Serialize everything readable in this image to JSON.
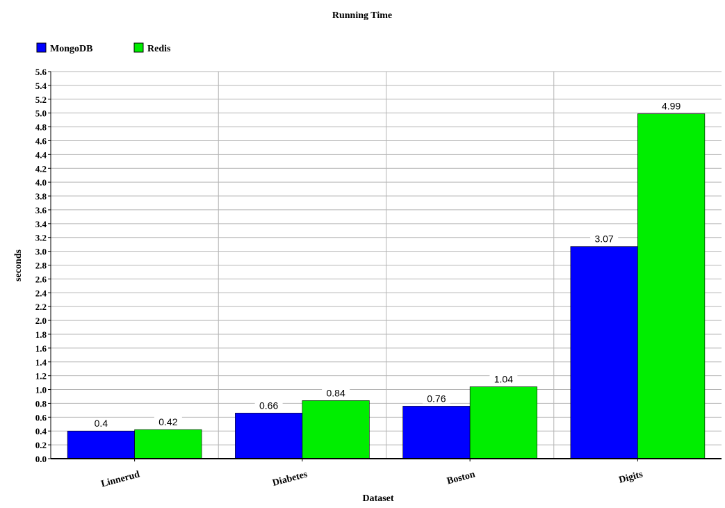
{
  "chart_data": {
    "type": "bar",
    "title": "Running Time",
    "xlabel": "Dataset",
    "ylabel": "seconds",
    "categories": [
      "Linnerud",
      "Diabetes",
      "Boston",
      "Digits"
    ],
    "series": [
      {
        "name": "MongoDB",
        "color": "#0000ff",
        "values": [
          0.4,
          0.66,
          0.76,
          3.07
        ],
        "labels": [
          "0.4",
          "0.66",
          "0.76",
          "3.07"
        ]
      },
      {
        "name": "Redis",
        "color": "#00ee00",
        "values": [
          0.42,
          0.84,
          1.04,
          4.99
        ],
        "labels": [
          "0.42",
          "0.84",
          "1.04",
          "4.99"
        ]
      }
    ],
    "ylim": [
      0,
      5.6
    ],
    "ytick_step": 0.2,
    "grid": true,
    "legend_position": "top-left"
  }
}
